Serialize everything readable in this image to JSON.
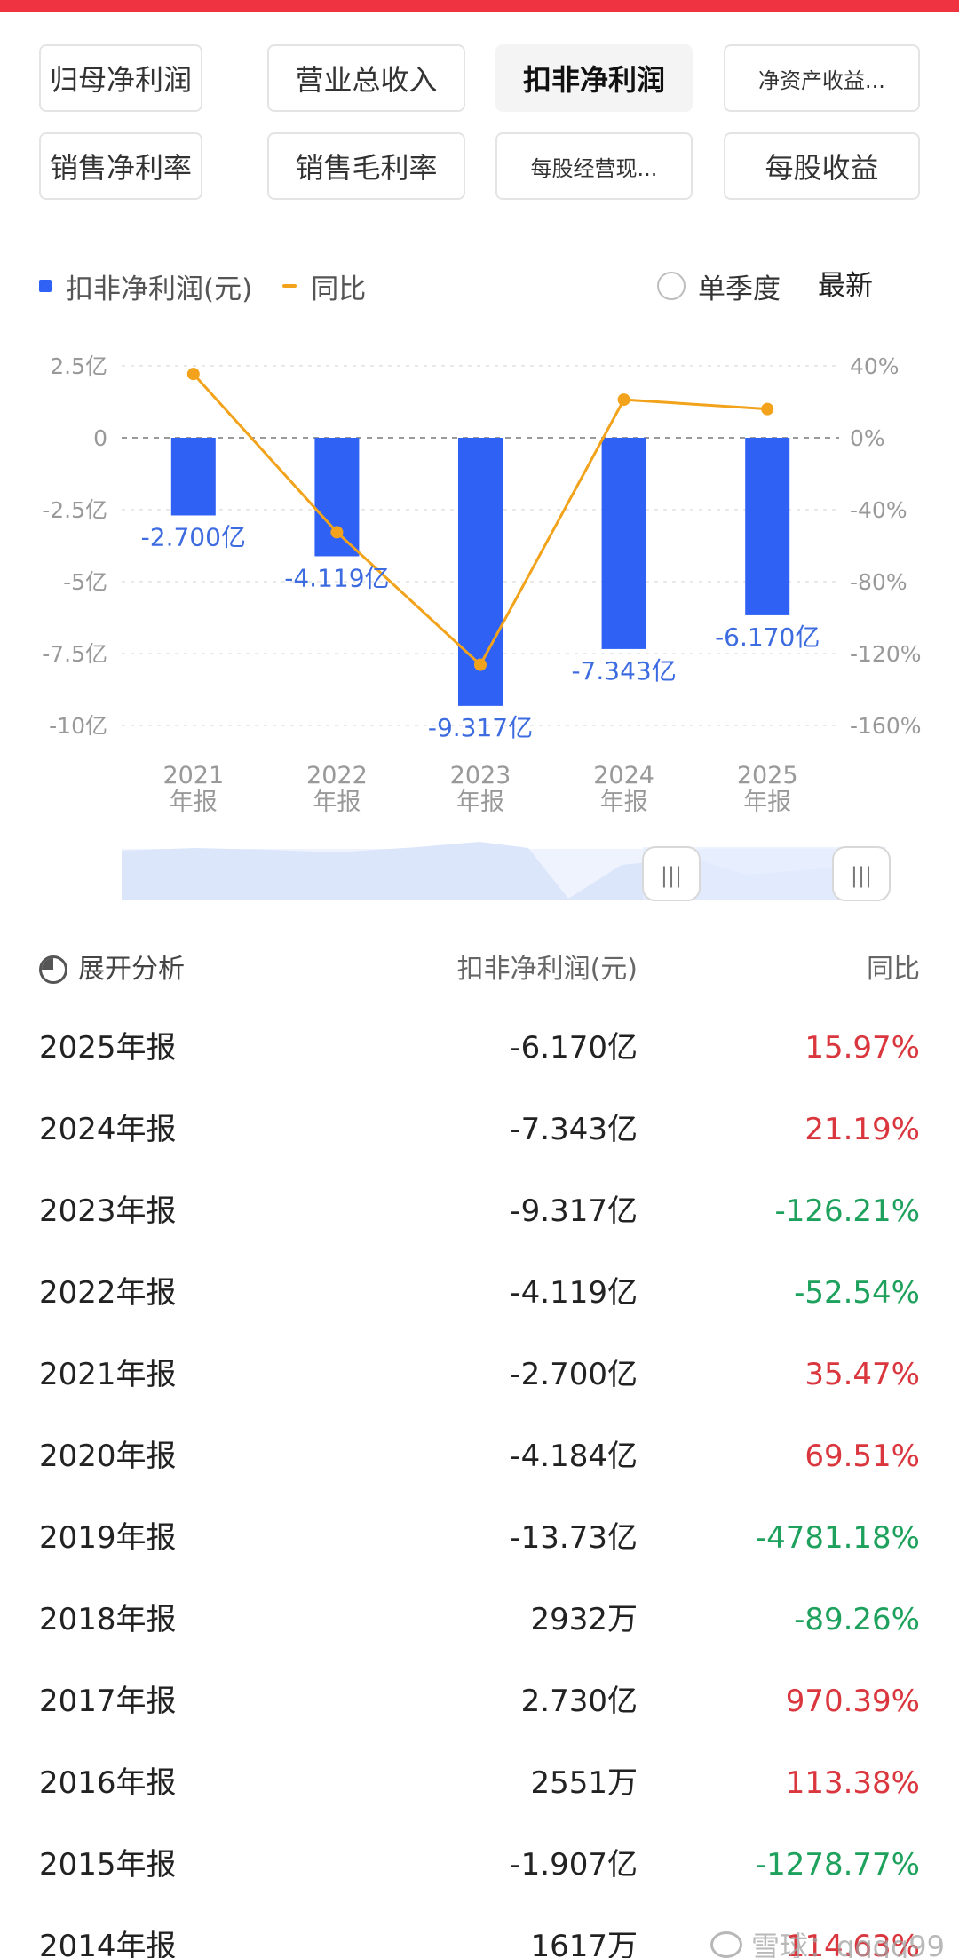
{
  "tabs": [
    {
      "label": "归母净利润",
      "active": false
    },
    {
      "label": "营业总收入",
      "active": false
    },
    {
      "label": "扣非净利润",
      "active": true
    },
    {
      "label": "净资产收益...",
      "active": false
    },
    {
      "label": "销售净利率",
      "active": false
    },
    {
      "label": "销售毛利率",
      "active": false
    },
    {
      "label": "每股经营现...",
      "active": false
    },
    {
      "label": "每股收益",
      "active": false
    }
  ],
  "legend": {
    "bar_label": "扣非净利润(元)",
    "line_label": "同比",
    "single_quarter": "单季度",
    "latest": "最新"
  },
  "colors": {
    "bar": "#2f62f4",
    "line": "#f2a31b",
    "positive": "#d9363e",
    "negative": "#1ea15c",
    "accent_top": "#ef3340"
  },
  "chart_data": {
    "type": "bar",
    "categories": [
      "2021\n年报",
      "2022\n年报",
      "2023\n年报",
      "2024\n年报",
      "2025\n年报"
    ],
    "series": [
      {
        "name": "扣非净利润(元)",
        "type": "bar",
        "values": [
          -2.7,
          -4.119,
          -9.317,
          -7.343,
          -6.17
        ],
        "labels": [
          "-2.700亿",
          "-4.119亿",
          "-9.317亿",
          "-7.343亿",
          "-6.170亿"
        ]
      },
      {
        "name": "同比",
        "type": "line",
        "values": [
          35.47,
          -52.54,
          -126.21,
          21.19,
          15.97
        ]
      }
    ],
    "y_left": {
      "ticks": [
        "2.5亿",
        "0",
        "-2.5亿",
        "-5亿",
        "-7.5亿",
        "-10亿"
      ],
      "range": [
        -10,
        2.5
      ]
    },
    "y_right": {
      "ticks": [
        "40%",
        "0%",
        "-40%",
        "-80%",
        "-120%",
        "-160%"
      ],
      "range": [
        -160,
        40
      ]
    },
    "grid": true
  },
  "table": {
    "header": {
      "expand": "展开分析",
      "value": "扣非净利润(元)",
      "yoy": "同比"
    },
    "rows": [
      {
        "year": "2025年报",
        "value": "-6.170亿",
        "yoy": "15.97%",
        "dir": "pos"
      },
      {
        "year": "2024年报",
        "value": "-7.343亿",
        "yoy": "21.19%",
        "dir": "pos"
      },
      {
        "year": "2023年报",
        "value": "-9.317亿",
        "yoy": "-126.21%",
        "dir": "neg"
      },
      {
        "year": "2022年报",
        "value": "-4.119亿",
        "yoy": "-52.54%",
        "dir": "neg"
      },
      {
        "year": "2021年报",
        "value": "-2.700亿",
        "yoy": "35.47%",
        "dir": "pos"
      },
      {
        "year": "2020年报",
        "value": "-4.184亿",
        "yoy": "69.51%",
        "dir": "pos"
      },
      {
        "year": "2019年报",
        "value": "-13.73亿",
        "yoy": "-4781.18%",
        "dir": "neg"
      },
      {
        "year": "2018年报",
        "value": "2932万",
        "yoy": "-89.26%",
        "dir": "neg"
      },
      {
        "year": "2017年报",
        "value": "2.730亿",
        "yoy": "970.39%",
        "dir": "pos"
      },
      {
        "year": "2016年报",
        "value": "2551万",
        "yoy": "113.38%",
        "dir": "pos"
      },
      {
        "year": "2015年报",
        "value": "-1.907亿",
        "yoy": "-1278.77%",
        "dir": "neg"
      },
      {
        "year": "2014年报",
        "value": "1617万",
        "yoy": "114.63%",
        "dir": "pos"
      }
    ]
  },
  "watermark": "雪球：qqqq99"
}
